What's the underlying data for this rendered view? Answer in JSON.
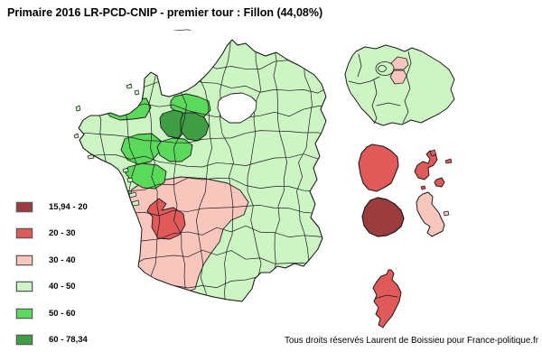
{
  "title": "Primaire 2016 LR-PCD-CNIP - premier tour : Fillon (44,08%)",
  "copyright": "Tous droits réservés Laurent de Boissieu pour France-politique.fr",
  "legend": {
    "items": [
      {
        "range": "15,94 - 20",
        "color": "#9d3c3e"
      },
      {
        "range": "20 - 30",
        "color": "#e05a5a"
      },
      {
        "range": "30 - 40",
        "color": "#f9c6bd"
      },
      {
        "range": "40 - 50",
        "color": "#cdf5c4"
      },
      {
        "range": "50 - 60",
        "color": "#5bd95b"
      },
      {
        "range": "60 - 78,34",
        "color": "#3f9e44"
      }
    ]
  },
  "map": {
    "default_bucket": "40 - 50",
    "border_color": "#1b1b1b",
    "regions": [
      {
        "id": "france-metropolitaine",
        "bucket": "40 - 50"
      },
      {
        "id": "ile-de-france",
        "bucket": "40 - 50"
      },
      {
        "id": "paris",
        "bucket": "40 - 50"
      },
      {
        "id": "cotes-darmor",
        "bucket": "50 - 60"
      },
      {
        "id": "orne",
        "bucket": "50 - 60"
      },
      {
        "id": "loire-atlantique",
        "bucket": "50 - 60"
      },
      {
        "id": "maine-et-loire",
        "bucket": "50 - 60"
      },
      {
        "id": "vendee",
        "bucket": "50 - 60"
      },
      {
        "id": "mayenne",
        "bucket": "60 - 78,34"
      },
      {
        "id": "sarthe",
        "bucket": "60 - 78,34"
      },
      {
        "id": "sud-ouest",
        "bucket": "30 - 40"
      },
      {
        "id": "gironde",
        "bucket": "20 - 30"
      },
      {
        "id": "seine-saint-denis",
        "bucket": "30 - 40"
      },
      {
        "id": "val-de-marne",
        "bucket": "30 - 40"
      },
      {
        "id": "guyane",
        "bucket": "20 - 30"
      },
      {
        "id": "guadeloupe",
        "bucket": "20 - 30"
      },
      {
        "id": "mayotte",
        "bucket": "20 - 30"
      },
      {
        "id": "martinique",
        "bucket": "30 - 40"
      },
      {
        "id": "la-reunion",
        "bucket": "15,94 - 20"
      },
      {
        "id": "corse",
        "bucket": "20 - 30"
      }
    ]
  }
}
